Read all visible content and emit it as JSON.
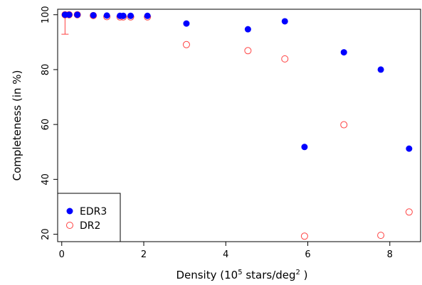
{
  "chart_data": {
    "type": "scatter",
    "title": "",
    "xlabel": {
      "prefix": "Density (10",
      "sup1": "5",
      "mid": " stars/deg",
      "sup2": "2",
      "suffix": " )"
    },
    "ylabel": "Completeness (in %)",
    "xlim": [
      -0.1,
      8.75
    ],
    "ylim": [
      17.3,
      102.0
    ],
    "x_ticks": [
      0,
      2,
      4,
      6,
      8
    ],
    "y_ticks": [
      20,
      40,
      60,
      80,
      100
    ],
    "grid": false,
    "legend_position": "bottom-left",
    "series": [
      {
        "name": "EDR3",
        "color": "#0000ff",
        "marker": "filled-circle",
        "points": [
          {
            "x": 0.08,
            "y": 100.0
          },
          {
            "x": 0.18,
            "y": 100.0
          },
          {
            "x": 0.38,
            "y": 100.0
          },
          {
            "x": 0.77,
            "y": 99.8
          },
          {
            "x": 1.1,
            "y": 99.7
          },
          {
            "x": 1.42,
            "y": 99.6
          },
          {
            "x": 1.5,
            "y": 99.6
          },
          {
            "x": 1.68,
            "y": 99.6
          },
          {
            "x": 2.09,
            "y": 99.6
          },
          {
            "x": 3.04,
            "y": 96.8
          },
          {
            "x": 4.54,
            "y": 94.7
          },
          {
            "x": 5.44,
            "y": 97.6
          },
          {
            "x": 5.92,
            "y": 51.8
          },
          {
            "x": 6.88,
            "y": 86.3
          },
          {
            "x": 7.78,
            "y": 80.0
          },
          {
            "x": 8.47,
            "y": 51.2
          }
        ]
      },
      {
        "name": "DR2",
        "color": "#ff4040",
        "marker": "open-circle",
        "points": [
          {
            "x": 0.08,
            "y": 100.0,
            "err": [
              92.9,
              100.0
            ]
          },
          {
            "x": 0.18,
            "y": 100.0
          },
          {
            "x": 0.38,
            "y": 100.0
          },
          {
            "x": 0.77,
            "y": 99.7
          },
          {
            "x": 1.1,
            "y": 99.3
          },
          {
            "x": 1.42,
            "y": 99.2
          },
          {
            "x": 1.5,
            "y": 99.2
          },
          {
            "x": 1.68,
            "y": 99.2
          },
          {
            "x": 2.09,
            "y": 99.2
          },
          {
            "x": 3.04,
            "y": 89.1
          },
          {
            "x": 4.54,
            "y": 86.9
          },
          {
            "x": 5.44,
            "y": 83.9
          },
          {
            "x": 5.92,
            "y": 19.3
          },
          {
            "x": 6.88,
            "y": 59.9
          },
          {
            "x": 7.78,
            "y": 19.6
          },
          {
            "x": 8.47,
            "y": 28.1
          }
        ]
      }
    ]
  }
}
